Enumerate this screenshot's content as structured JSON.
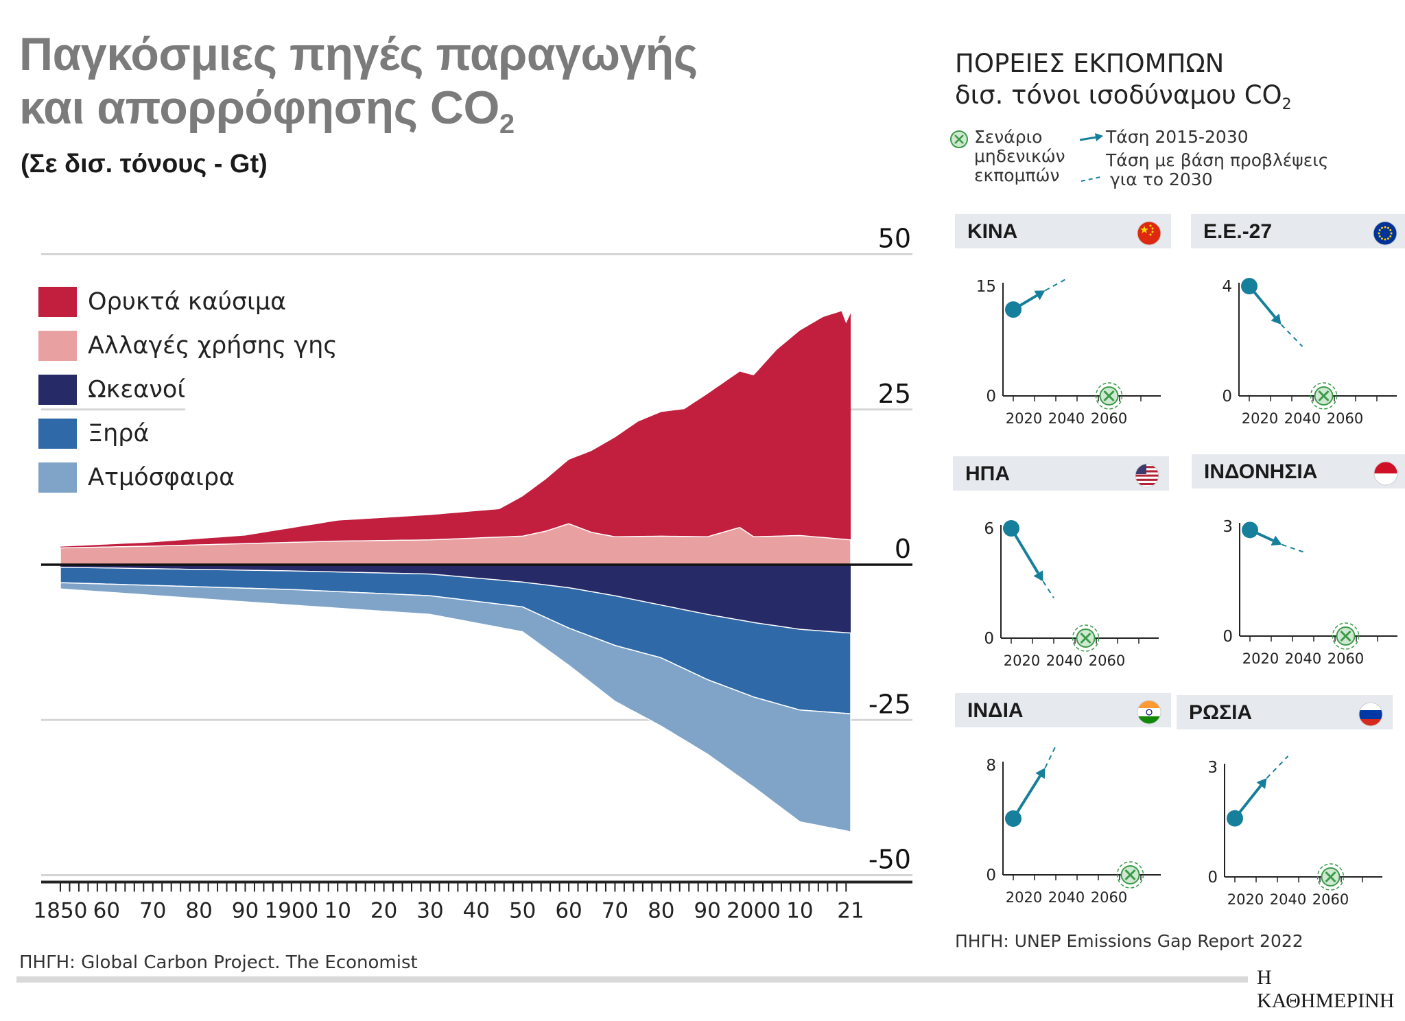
{
  "title": {
    "line1": "Παγκόσμιες πηγές παραγωγής",
    "line2": "και απορρόφησης CO",
    "sub": "2"
  },
  "subtitle": "(Σε δισ. τόνους - Gt)",
  "source_left": "ΠΗΓΗ: Global Carbon Project. The Economist",
  "source_right": "ΠΗΓΗ: UNEP Emissions Gap Report 2022",
  "brand": "Η ΚΑΘΗΜΕΡΙΝΗ",
  "colors": {
    "fossil": "#c21e3e",
    "land": "#e8a0a0",
    "ocean": "#262a66",
    "land_sink": "#2f69a7",
    "atmosphere": "#7fa4c8",
    "trend": "#167f9b",
    "netzero": "#3a9a47"
  },
  "chart_data": [
    {
      "type": "area",
      "title": "Παγκόσμιες πηγές παραγωγής και απορρόφησης CO2",
      "ylabel": "Gt",
      "ylim": [
        -50,
        50
      ],
      "yticks": [
        50,
        25,
        0,
        -25,
        -50
      ],
      "ytick_labels": [
        "50",
        "25",
        "0",
        "-25",
        "-50"
      ],
      "xlim": [
        1850,
        2021
      ],
      "xtick_labels": [
        {
          "year": 1850,
          "label": "1850"
        },
        {
          "year": 1860,
          "label": "60"
        },
        {
          "year": 1870,
          "label": "70"
        },
        {
          "year": 1880,
          "label": "80"
        },
        {
          "year": 1890,
          "label": "90"
        },
        {
          "year": 1900,
          "label": "1900"
        },
        {
          "year": 1910,
          "label": "10"
        },
        {
          "year": 1920,
          "label": "20"
        },
        {
          "year": 1930,
          "label": "30"
        },
        {
          "year": 1940,
          "label": "40"
        },
        {
          "year": 1950,
          "label": "50"
        },
        {
          "year": 1960,
          "label": "60"
        },
        {
          "year": 1970,
          "label": "70"
        },
        {
          "year": 1980,
          "label": "80"
        },
        {
          "year": 1990,
          "label": "90"
        },
        {
          "year": 2000,
          "label": "2000"
        },
        {
          "year": 2010,
          "label": "10"
        },
        {
          "year": 2021,
          "label": "21"
        }
      ],
      "series": [
        {
          "name": "Ορυκτά καύσιμα",
          "key": "fossil",
          "x": [
            1850,
            1870,
            1890,
            1910,
            1930,
            1945,
            1950,
            1960,
            1970,
            1975,
            1980,
            1985,
            1990,
            1995,
            2000,
            2005,
            2010,
            2015,
            2019,
            2020,
            2021
          ],
          "values": [
            0.2,
            0.6,
            1.3,
            3.3,
            4.0,
            4.5,
            6.4,
            10.3,
            16,
            18.5,
            20,
            20.5,
            23,
            24.5,
            26,
            30,
            33,
            35.5,
            36.7,
            34.8,
            36.5
          ]
        },
        {
          "name": "Αλλαγές χρήσης γης",
          "key": "land",
          "x": [
            1850,
            1870,
            1890,
            1910,
            1930,
            1950,
            1955,
            1960,
            1965,
            1970,
            1980,
            1990,
            1997,
            2000,
            2010,
            2021
          ],
          "values": [
            2.7,
            3.0,
            3.4,
            3.8,
            4.0,
            4.6,
            5.4,
            6.6,
            5.2,
            4.5,
            4.6,
            4.5,
            6.0,
            4.5,
            4.7,
            4.0
          ]
        },
        {
          "name": "Ωκεανοί",
          "key": "ocean",
          "x": [
            1850,
            1900,
            1930,
            1950,
            1960,
            1970,
            1980,
            1990,
            2000,
            2010,
            2021
          ],
          "values": [
            -0.4,
            -1.0,
            -1.5,
            -2.8,
            -3.7,
            -5.0,
            -6.5,
            -8.0,
            -9.3,
            -10.4,
            -11.0
          ]
        },
        {
          "name": "Ξηρά",
          "key": "land_sink",
          "x": [
            1850,
            1900,
            1930,
            1950,
            1960,
            1970,
            1980,
            1990,
            2000,
            2010,
            2021
          ],
          "values": [
            -2.5,
            -3.0,
            -3.5,
            -4.0,
            -6.5,
            -8.0,
            -8.5,
            -10.5,
            -12.0,
            -13.0,
            -13.0
          ]
        },
        {
          "name": "Ατμόσφαιρα",
          "key": "atmosphere",
          "x": [
            1850,
            1900,
            1930,
            1950,
            1960,
            1970,
            1980,
            1990,
            2000,
            2010,
            2021
          ],
          "values": [
            -1.0,
            -2.5,
            -3.0,
            -4.0,
            -6.0,
            -9.0,
            -11.0,
            -12.0,
            -14.5,
            -18.0,
            -19.0
          ]
        }
      ]
    },
    {
      "type": "line",
      "country": "ΚΙΝΑ",
      "flag": "china",
      "ytick_labels": [
        "15",
        "0"
      ],
      "ymax": 15,
      "xtick_labels": [
        "2020",
        "2040",
        "2060"
      ],
      "trend": {
        "from": [
          2015,
          11.8
        ],
        "to": [
          2030,
          14.4
        ]
      },
      "projection": {
        "from": [
          2030,
          14.4
        ],
        "to": [
          2040,
          16.0
        ]
      },
      "net_zero_year": 2060
    },
    {
      "type": "line",
      "country": "Ε.Ε.-27",
      "flag": "eu",
      "ytick_labels": [
        "4",
        "0"
      ],
      "ymax": 4,
      "xtick_labels": [
        "2020",
        "2040",
        "2060"
      ],
      "trend": {
        "from": [
          2015,
          4.0
        ],
        "to": [
          2030,
          2.6
        ]
      },
      "projection": {
        "from": [
          2030,
          2.6
        ],
        "to": [
          2040,
          1.8
        ]
      },
      "net_zero_year": 2050
    },
    {
      "type": "line",
      "country": "ΗΠΑ",
      "flag": "usa",
      "ytick_labels": [
        "6",
        "0"
      ],
      "ymax": 6,
      "xtick_labels": [
        "2020",
        "2040",
        "2060"
      ],
      "trend": {
        "from": [
          2015,
          6.0
        ],
        "to": [
          2030,
          3.1
        ]
      },
      "projection": {
        "from": [
          2030,
          3.1
        ],
        "to": [
          2035,
          2.2
        ]
      },
      "net_zero_year": 2050
    },
    {
      "type": "line",
      "country": "ΙΝΔΟΝΗΣΙΑ",
      "flag": "indonesia",
      "ytick_labels": [
        "3",
        "0"
      ],
      "ymax": 3,
      "xtick_labels": [
        "2020",
        "2040",
        "2060"
      ],
      "trend": {
        "from": [
          2015,
          2.9
        ],
        "to": [
          2030,
          2.5
        ]
      },
      "projection": {
        "from": [
          2030,
          2.5
        ],
        "to": [
          2040,
          2.3
        ]
      },
      "net_zero_year": 2060
    },
    {
      "type": "line",
      "country": "ΙΝΔΙΑ",
      "flag": "india",
      "ytick_labels": [
        "8",
        "0"
      ],
      "ymax": 8,
      "xtick_labels": [
        "2020",
        "2040",
        "2060"
      ],
      "trend": {
        "from": [
          2015,
          4.1
        ],
        "to": [
          2030,
          7.8
        ]
      },
      "projection": {
        "from": [
          2030,
          7.8
        ],
        "to": [
          2035,
          9.4
        ]
      },
      "net_zero_year": 2070
    },
    {
      "type": "line",
      "country": "ΡΩΣΙΑ",
      "flag": "russia",
      "ytick_labels": [
        "3",
        "0"
      ],
      "ymax": 3,
      "xtick_labels": [
        "2020",
        "2040",
        "2060"
      ],
      "trend": {
        "from": [
          2015,
          1.6
        ],
        "to": [
          2030,
          2.7
        ]
      },
      "projection": {
        "from": [
          2030,
          2.7
        ],
        "to": [
          2040,
          3.3
        ]
      },
      "net_zero_year": 2060
    }
  ],
  "legend": [
    {
      "key": "fossil",
      "label": "Ορυκτά καύσιμα"
    },
    {
      "key": "land",
      "label": "Αλλαγές χρήσης γης"
    },
    {
      "key": "ocean",
      "label": "Ωκεανοί"
    },
    {
      "key": "land_sink",
      "label": "Ξηρά"
    },
    {
      "key": "atmosphere",
      "label": "Ατμόσφαιρα"
    }
  ],
  "right_panel": {
    "title_line1": "ΠΟΡΕΙΕΣ ΕΚΠΟΜΠΩΝ",
    "title_line2": "δισ. τόνοι ισοδύναμου CO",
    "title_sub": "2",
    "legend_netzero": [
      "Σενάριο",
      "μηδενικών",
      "εκπομπών"
    ],
    "legend_trend": "Τάση 2015-2030",
    "legend_projection": [
      "Τάση με βάση προβλέψεις",
      "για το 2030"
    ]
  }
}
